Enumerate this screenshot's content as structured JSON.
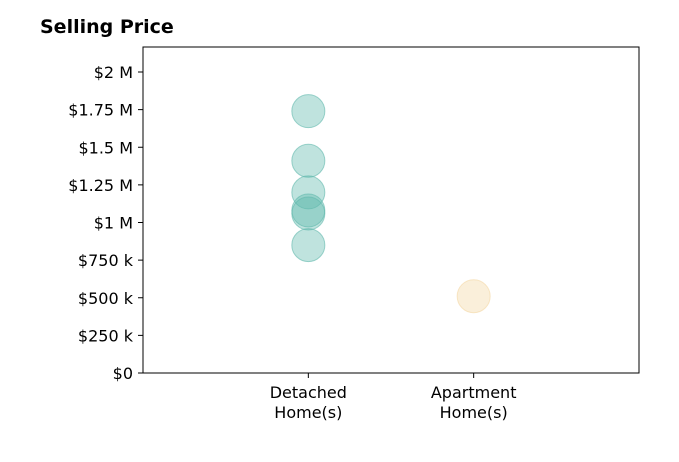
{
  "chart_data": {
    "type": "scatter",
    "title": "Selling Price",
    "xlabel": "",
    "ylabel": "",
    "categories": [
      "Detached\nHome(s)",
      "Apartment\nHome(s)"
    ],
    "xlim": [
      -1,
      2
    ],
    "ylim": [
      0,
      2000000
    ],
    "yticks": [
      {
        "value": 0,
        "label": "$0"
      },
      {
        "value": 250000,
        "label": "$250 k"
      },
      {
        "value": 500000,
        "label": "$500 k"
      },
      {
        "value": 750000,
        "label": "$750 k"
      },
      {
        "value": 1000000,
        "label": "$1 M"
      },
      {
        "value": 1250000,
        "label": "$1.25 M"
      },
      {
        "value": 1500000,
        "label": "$1.5 M"
      },
      {
        "value": 1750000,
        "label": "$1.75 M"
      },
      {
        "value": 2000000,
        "label": "$2 M"
      }
    ],
    "grid": false,
    "series": [
      {
        "category": "Detached\nHome(s)",
        "color": "#5fb8ac",
        "values": [
          1740000,
          1410000,
          1200000,
          1080000,
          1060000,
          850000
        ]
      },
      {
        "category": "Apartment\nHome(s)",
        "color": "#f3d7a3",
        "values": [
          510000
        ]
      }
    ]
  }
}
